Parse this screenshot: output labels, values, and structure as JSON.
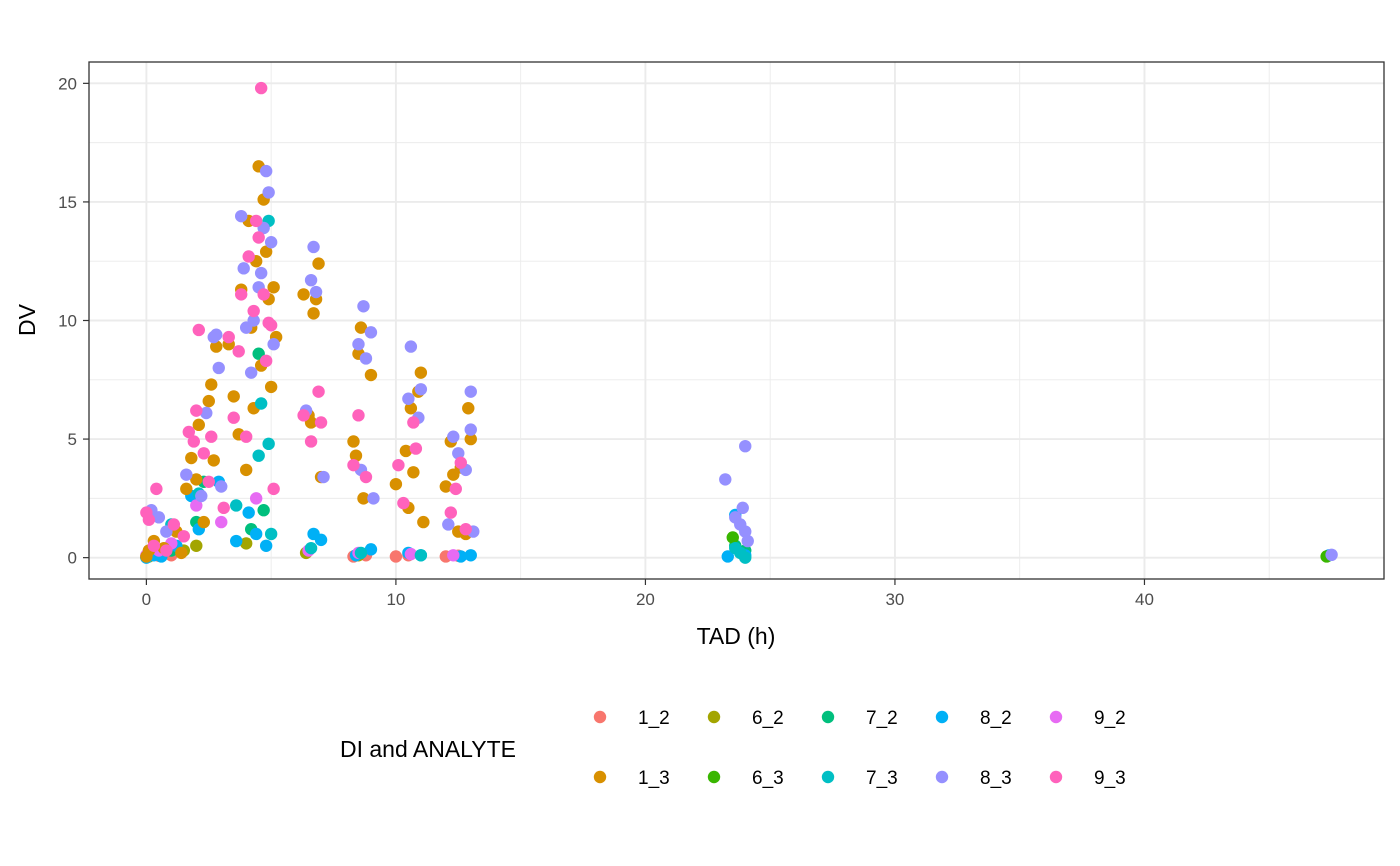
{
  "chart_data": {
    "type": "scatter",
    "title": "",
    "xlabel": "TAD (h)",
    "ylabel": "DV",
    "xlim": [
      -2.3,
      49.6
    ],
    "ylim": [
      -0.9,
      20.9
    ],
    "x_ticks": [
      0,
      10,
      20,
      30,
      40
    ],
    "y_ticks": [
      0,
      5,
      10,
      15,
      20
    ],
    "x_tick_labels": [
      "0",
      "10",
      "20",
      "30",
      "40"
    ],
    "y_tick_labels": [
      "0",
      "5",
      "10",
      "15",
      "20"
    ],
    "grid": true,
    "legend": {
      "title": "DI and ANALYTE",
      "position": "bottom",
      "rows": 2
    },
    "series": [
      {
        "name": "1_2",
        "color": "#F8766D",
        "points": [
          [
            0.0,
            0.05
          ],
          [
            0.2,
            0.1
          ],
          [
            0.5,
            0.08
          ],
          [
            1.0,
            0.1
          ],
          [
            8.3,
            0.05
          ],
          [
            8.8,
            0.1
          ],
          [
            10.0,
            0.05
          ],
          [
            10.5,
            0.1
          ],
          [
            12.0,
            0.05
          ],
          [
            12.5,
            0.08
          ]
        ]
      },
      {
        "name": "6_2",
        "color": "#A3A500",
        "points": [
          [
            0.1,
            0.05
          ],
          [
            1.5,
            0.3
          ],
          [
            2.0,
            0.5
          ],
          [
            4.0,
            0.6
          ],
          [
            6.4,
            0.2
          ],
          [
            8.5,
            0.1
          ]
        ]
      },
      {
        "name": "7_2",
        "color": "#00BF7D",
        "points": [
          [
            0.0,
            0.02
          ],
          [
            1.0,
            0.3
          ],
          [
            2.0,
            1.5
          ],
          [
            2.3,
            3.2
          ],
          [
            4.2,
            1.2
          ],
          [
            4.5,
            8.6
          ],
          [
            4.7,
            2.0
          ],
          [
            23.6,
            0.5
          ],
          [
            24.0,
            0.3
          ]
        ]
      },
      {
        "name": "8_2",
        "color": "#00B0F6",
        "points": [
          [
            0.0,
            0.0
          ],
          [
            0.3,
            0.1
          ],
          [
            0.6,
            0.05
          ],
          [
            1.2,
            0.5
          ],
          [
            1.8,
            2.6
          ],
          [
            2.1,
            1.2
          ],
          [
            2.9,
            3.2
          ],
          [
            3.6,
            0.7
          ],
          [
            4.1,
            1.9
          ],
          [
            4.4,
            1.0
          ],
          [
            4.8,
            0.5
          ],
          [
            6.7,
            1.0
          ],
          [
            7.0,
            0.75
          ],
          [
            8.4,
            0.1
          ],
          [
            9.0,
            0.35
          ],
          [
            10.5,
            0.2
          ],
          [
            11.0,
            0.1
          ],
          [
            12.6,
            0.05
          ],
          [
            13.0,
            0.1
          ],
          [
            23.3,
            0.05
          ],
          [
            23.6,
            1.8
          ],
          [
            24.0,
            0.1
          ],
          [
            47.4,
            0.1
          ]
        ]
      },
      {
        "name": "9_2",
        "color": "#E76BF3",
        "points": [
          [
            0.0,
            0.1
          ],
          [
            0.5,
            0.3
          ],
          [
            1.0,
            0.6
          ],
          [
            2.0,
            2.2
          ],
          [
            3.0,
            1.5
          ],
          [
            4.4,
            2.5
          ],
          [
            6.5,
            0.3
          ],
          [
            8.5,
            0.2
          ],
          [
            10.6,
            0.15
          ],
          [
            12.3,
            0.1
          ]
        ]
      },
      {
        "name": "1_3",
        "color": "#D89000",
        "points": [
          [
            0.0,
            0.05
          ],
          [
            0.1,
            0.3
          ],
          [
            0.3,
            0.7
          ],
          [
            0.7,
            0.4
          ],
          [
            1.2,
            1.1
          ],
          [
            1.4,
            0.2
          ],
          [
            1.6,
            2.9
          ],
          [
            1.8,
            4.2
          ],
          [
            2.0,
            3.3
          ],
          [
            2.1,
            5.6
          ],
          [
            2.3,
            1.5
          ],
          [
            2.5,
            6.6
          ],
          [
            2.6,
            7.3
          ],
          [
            2.7,
            4.1
          ],
          [
            2.8,
            8.9
          ],
          [
            3.3,
            9.0
          ],
          [
            3.5,
            6.8
          ],
          [
            3.7,
            5.2
          ],
          [
            3.8,
            11.3
          ],
          [
            4.0,
            3.7
          ],
          [
            4.1,
            14.2
          ],
          [
            4.2,
            9.7
          ],
          [
            4.3,
            6.3
          ],
          [
            4.4,
            12.5
          ],
          [
            4.5,
            16.5
          ],
          [
            4.6,
            8.1
          ],
          [
            4.7,
            15.1
          ],
          [
            4.8,
            12.9
          ],
          [
            4.9,
            10.9
          ],
          [
            5.0,
            7.2
          ],
          [
            5.1,
            11.4
          ],
          [
            5.2,
            9.3
          ],
          [
            6.3,
            11.1
          ],
          [
            6.5,
            6.0
          ],
          [
            6.6,
            5.7
          ],
          [
            6.7,
            10.3
          ],
          [
            6.8,
            10.9
          ],
          [
            6.9,
            12.4
          ],
          [
            7.0,
            3.4
          ],
          [
            8.3,
            4.9
          ],
          [
            8.4,
            4.3
          ],
          [
            8.5,
            8.6
          ],
          [
            8.6,
            9.7
          ],
          [
            8.7,
            2.5
          ],
          [
            9.0,
            7.7
          ],
          [
            10.0,
            3.1
          ],
          [
            10.4,
            4.5
          ],
          [
            10.5,
            2.1
          ],
          [
            10.6,
            6.3
          ],
          [
            10.7,
            3.6
          ],
          [
            10.9,
            7.0
          ],
          [
            11.0,
            7.8
          ],
          [
            11.1,
            1.5
          ],
          [
            12.0,
            3.0
          ],
          [
            12.2,
            4.9
          ],
          [
            12.3,
            3.5
          ],
          [
            12.5,
            1.1
          ],
          [
            12.6,
            3.8
          ],
          [
            12.8,
            1.0
          ],
          [
            12.9,
            6.3
          ],
          [
            13.0,
            5.0
          ]
        ]
      },
      {
        "name": "6_3",
        "color": "#39B600",
        "points": [
          [
            23.5,
            0.85
          ],
          [
            47.3,
            0.05
          ]
        ]
      },
      {
        "name": "7_3",
        "color": "#00BFC4",
        "points": [
          [
            1.0,
            1.4
          ],
          [
            2.1,
            2.7
          ],
          [
            3.6,
            2.2
          ],
          [
            4.5,
            4.3
          ],
          [
            4.6,
            6.5
          ],
          [
            4.9,
            14.2
          ],
          [
            4.9,
            4.8
          ],
          [
            5.0,
            1.0
          ],
          [
            6.6,
            0.4
          ],
          [
            8.6,
            0.2
          ],
          [
            11.0,
            0.1
          ],
          [
            23.6,
            0.4
          ],
          [
            23.8,
            0.2
          ],
          [
            24.0,
            0.0
          ]
        ]
      },
      {
        "name": "8_3",
        "color": "#9590FF",
        "points": [
          [
            0.2,
            2.0
          ],
          [
            0.5,
            1.7
          ],
          [
            0.8,
            1.1
          ],
          [
            1.6,
            3.5
          ],
          [
            2.2,
            2.6
          ],
          [
            2.4,
            6.1
          ],
          [
            2.7,
            9.3
          ],
          [
            2.8,
            9.4
          ],
          [
            2.9,
            8.0
          ],
          [
            3.0,
            3.0
          ],
          [
            3.8,
            14.4
          ],
          [
            3.9,
            12.2
          ],
          [
            4.0,
            9.7
          ],
          [
            4.2,
            7.8
          ],
          [
            4.3,
            10.0
          ],
          [
            4.5,
            11.4
          ],
          [
            4.6,
            12.0
          ],
          [
            4.7,
            13.9
          ],
          [
            4.8,
            16.3
          ],
          [
            4.9,
            15.4
          ],
          [
            5.0,
            13.3
          ],
          [
            5.1,
            9.0
          ],
          [
            6.4,
            6.2
          ],
          [
            6.6,
            11.7
          ],
          [
            6.7,
            13.1
          ],
          [
            6.8,
            11.2
          ],
          [
            7.1,
            3.4
          ],
          [
            8.5,
            9.0
          ],
          [
            8.6,
            3.7
          ],
          [
            8.7,
            10.6
          ],
          [
            8.8,
            8.4
          ],
          [
            9.0,
            9.5
          ],
          [
            9.1,
            2.5
          ],
          [
            10.5,
            6.7
          ],
          [
            10.6,
            8.9
          ],
          [
            10.9,
            5.9
          ],
          [
            11.0,
            7.1
          ],
          [
            12.1,
            1.4
          ],
          [
            12.3,
            5.1
          ],
          [
            12.5,
            4.4
          ],
          [
            12.8,
            3.7
          ],
          [
            13.0,
            7.0
          ],
          [
            13.0,
            5.4
          ],
          [
            13.1,
            1.1
          ],
          [
            23.2,
            3.3
          ],
          [
            23.6,
            1.7
          ],
          [
            23.8,
            1.4
          ],
          [
            23.9,
            2.1
          ],
          [
            24.0,
            4.7
          ],
          [
            24.0,
            1.1
          ],
          [
            24.1,
            0.7
          ],
          [
            47.5,
            0.12
          ]
        ]
      },
      {
        "name": "9_3",
        "color": "#FF62BC",
        "points": [
          [
            0.0,
            1.9
          ],
          [
            0.1,
            1.6
          ],
          [
            0.3,
            0.5
          ],
          [
            0.4,
            2.9
          ],
          [
            0.8,
            0.3
          ],
          [
            1.1,
            1.4
          ],
          [
            1.5,
            0.9
          ],
          [
            1.7,
            5.3
          ],
          [
            1.9,
            4.9
          ],
          [
            2.0,
            6.2
          ],
          [
            2.1,
            9.6
          ],
          [
            2.3,
            4.4
          ],
          [
            2.5,
            3.2
          ],
          [
            2.6,
            5.1
          ],
          [
            3.1,
            2.1
          ],
          [
            3.3,
            9.3
          ],
          [
            3.5,
            5.9
          ],
          [
            3.7,
            8.7
          ],
          [
            3.8,
            11.1
          ],
          [
            4.0,
            5.1
          ],
          [
            4.1,
            12.7
          ],
          [
            4.3,
            10.4
          ],
          [
            4.4,
            14.2
          ],
          [
            4.5,
            13.5
          ],
          [
            4.6,
            19.8
          ],
          [
            4.7,
            11.1
          ],
          [
            4.8,
            8.3
          ],
          [
            4.9,
            9.9
          ],
          [
            5.0,
            9.8
          ],
          [
            5.1,
            2.9
          ],
          [
            6.3,
            6.0
          ],
          [
            6.6,
            4.9
          ],
          [
            6.9,
            7.0
          ],
          [
            7.0,
            5.7
          ],
          [
            8.3,
            3.9
          ],
          [
            8.5,
            6.0
          ],
          [
            8.8,
            3.4
          ],
          [
            10.1,
            3.9
          ],
          [
            10.3,
            2.3
          ],
          [
            10.7,
            5.7
          ],
          [
            10.8,
            4.6
          ],
          [
            12.2,
            1.9
          ],
          [
            12.4,
            2.9
          ],
          [
            12.6,
            4.0
          ],
          [
            12.8,
            1.2
          ]
        ]
      }
    ]
  }
}
